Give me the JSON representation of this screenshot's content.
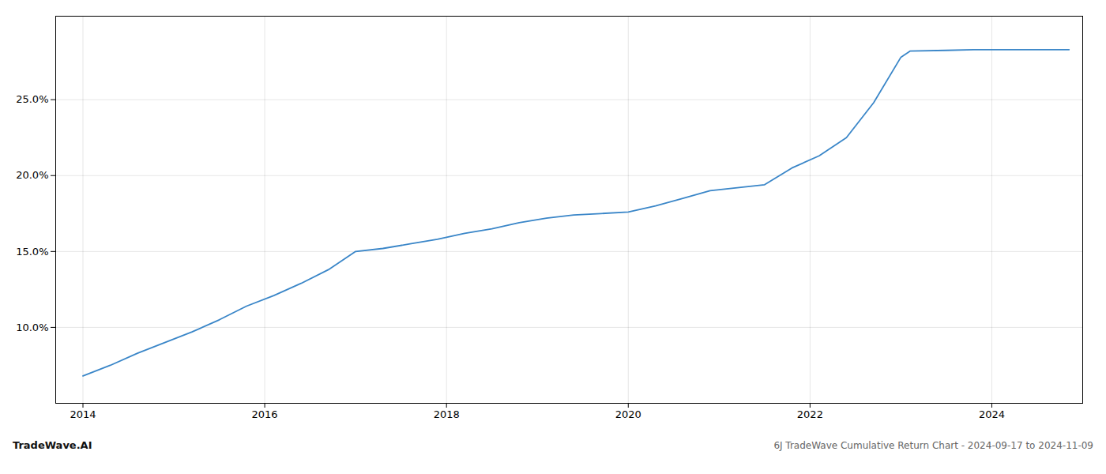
{
  "chart_data": {
    "type": "line",
    "title": "6J TradeWave Cumulative Return Chart - 2024-09-17 to 2024-11-09",
    "annotations": [
      "TradeWave.AI"
    ],
    "color": "#3a86c8",
    "x": [
      2014.0,
      2014.3,
      2014.6,
      2014.9,
      2015.2,
      2015.5,
      2015.8,
      2016.1,
      2016.4,
      2016.7,
      2017.0,
      2017.3,
      2017.6,
      2017.9,
      2018.2,
      2018.5,
      2018.8,
      2019.1,
      2019.4,
      2019.7,
      2020.0,
      2020.3,
      2020.6,
      2020.9,
      2021.2,
      2021.5,
      2021.8,
      2022.1,
      2022.4,
      2022.7,
      2023.0,
      2023.1,
      2023.5,
      2023.8,
      2024.0,
      2024.5,
      2024.85
    ],
    "values": [
      6.8,
      7.5,
      8.3,
      9.0,
      9.7,
      10.5,
      11.4,
      12.1,
      12.9,
      13.8,
      15.0,
      15.2,
      15.5,
      15.8,
      16.2,
      16.5,
      16.9,
      17.2,
      17.4,
      17.5,
      17.6,
      18.0,
      18.5,
      19.0,
      19.2,
      19.4,
      20.5,
      21.3,
      22.5,
      24.8,
      27.8,
      28.2,
      28.25,
      28.3,
      28.3,
      28.3,
      28.3
    ],
    "xlim": [
      2013.7,
      2025.0
    ],
    "ylim": [
      5.0,
      30.5
    ],
    "xticks": [
      2014,
      2016,
      2018,
      2020,
      2022,
      2024
    ],
    "yticks": [
      {
        "value": 10.0,
        "label": "10.0%"
      },
      {
        "value": 15.0,
        "label": "15.0%"
      },
      {
        "value": 20.0,
        "label": "20.0%"
      },
      {
        "value": 25.0,
        "label": "25.0%"
      }
    ],
    "grid": true
  }
}
